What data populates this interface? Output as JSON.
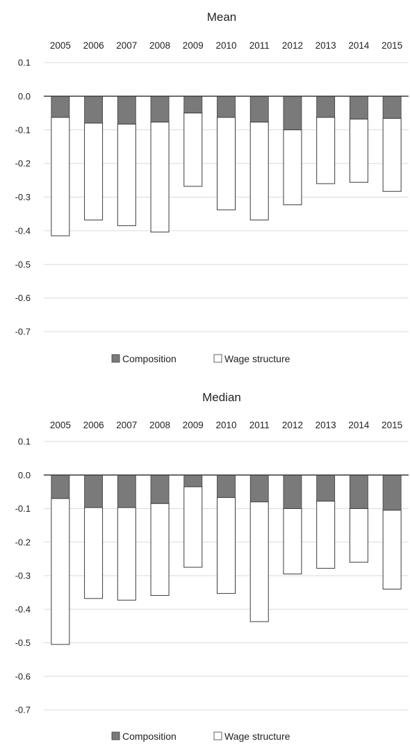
{
  "chart_data": [
    {
      "type": "bar",
      "stacked": true,
      "title": "Mean",
      "categories": [
        "2005",
        "2006",
        "2007",
        "2008",
        "2009",
        "2010",
        "2011",
        "2012",
        "2013",
        "2014",
        "2015"
      ],
      "series": [
        {
          "name": "Composition",
          "color": "#7a7a7a",
          "values": [
            -0.063,
            -0.08,
            -0.083,
            -0.077,
            -0.05,
            -0.063,
            -0.077,
            -0.1,
            -0.063,
            -0.068,
            -0.066
          ]
        },
        {
          "name": "Wage structure",
          "color": "#ffffff",
          "values": [
            -0.352,
            -0.288,
            -0.302,
            -0.327,
            -0.218,
            -0.275,
            -0.291,
            -0.223,
            -0.197,
            -0.188,
            -0.217
          ]
        }
      ],
      "ylim": [
        -0.7,
        0.1
      ],
      "yticks": [
        "0.1",
        "0.0",
        "-0.1",
        "-0.2",
        "-0.3",
        "-0.4",
        "-0.5",
        "-0.6",
        "-0.7"
      ],
      "xaxis_position": "top",
      "grid": true,
      "legend": "bottom"
    },
    {
      "type": "bar",
      "stacked": true,
      "title": "Median",
      "categories": [
        "2005",
        "2006",
        "2007",
        "2008",
        "2009",
        "2010",
        "2011",
        "2012",
        "2013",
        "2014",
        "2015"
      ],
      "series": [
        {
          "name": "Composition",
          "color": "#7a7a7a",
          "values": [
            -0.07,
            -0.097,
            -0.097,
            -0.085,
            -0.035,
            -0.067,
            -0.08,
            -0.1,
            -0.078,
            -0.1,
            -0.105
          ]
        },
        {
          "name": "Wage structure",
          "color": "#ffffff",
          "values": [
            -0.435,
            -0.271,
            -0.276,
            -0.274,
            -0.24,
            -0.286,
            -0.357,
            -0.195,
            -0.2,
            -0.16,
            -0.235
          ]
        }
      ],
      "ylim": [
        -0.7,
        0.1
      ],
      "yticks": [
        "0.1",
        "0.0",
        "-0.1",
        "-0.2",
        "-0.3",
        "-0.4",
        "-0.5",
        "-0.6",
        "-0.7"
      ],
      "xaxis_position": "top",
      "grid": true,
      "legend": "bottom"
    }
  ]
}
